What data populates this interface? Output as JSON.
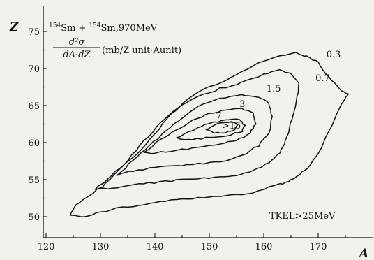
{
  "chart_data": {
    "type": "contour",
    "title": "",
    "reaction": {
      "mass1": "154",
      "el1": "Sm",
      "plus": "+",
      "mass2": "154",
      "el2": "Sm",
      "energy": ",970MeV"
    },
    "quantity": {
      "numerator": "d²σ",
      "denominator": "dA·dZ",
      "unit": "(mb/Z unit·Aunit)"
    },
    "cut_label": "TKEL>25MeV",
    "xlabel": "A",
    "ylabel": "Z",
    "xlim": [
      120,
      177
    ],
    "ylim": [
      48,
      76
    ],
    "xticks": [
      120,
      130,
      140,
      150,
      160,
      170
    ],
    "yticks": [
      50,
      55,
      60,
      65,
      70,
      75
    ],
    "grid": false,
    "contours": [
      {
        "level": "0.3",
        "label_pos": [
          171.5,
          71.5
        ],
        "points": [
          [
            124.5,
            50.2
          ],
          [
            125.5,
            51.6
          ],
          [
            128,
            52.8
          ],
          [
            131,
            54.5
          ],
          [
            134,
            56.8
          ],
          [
            137,
            58.6
          ],
          [
            140,
            61.2
          ],
          [
            143,
            63.8
          ],
          [
            146,
            65.9
          ],
          [
            150,
            67.6
          ],
          [
            154,
            68.7
          ],
          [
            158,
            70.4
          ],
          [
            162,
            71.6
          ],
          [
            166,
            72.1
          ],
          [
            168,
            71.6
          ],
          [
            170,
            70.8
          ],
          [
            172,
            68.7
          ],
          [
            174,
            67.2
          ],
          [
            175.5,
            66.6
          ],
          [
            174,
            64.6
          ],
          [
            172,
            61.6
          ],
          [
            170,
            58.6
          ],
          [
            168,
            56.6
          ],
          [
            166,
            55.4
          ],
          [
            164,
            54.6
          ],
          [
            162,
            54.2
          ],
          [
            158,
            53.2
          ],
          [
            154,
            52.9
          ],
          [
            150,
            52.6
          ],
          [
            146,
            52.4
          ],
          [
            142,
            52.1
          ],
          [
            138,
            51.6
          ],
          [
            134,
            51.3
          ],
          [
            130,
            50.6
          ],
          [
            127,
            50.0
          ],
          [
            124.5,
            50.2
          ]
        ]
      },
      {
        "level": "0.7",
        "label_pos": [
          169.5,
          68.3
        ],
        "points": [
          [
            129,
            53.7
          ],
          [
            132,
            55.5
          ],
          [
            135,
            57.6
          ],
          [
            138,
            60.2
          ],
          [
            141,
            62.6
          ],
          [
            144,
            64.6
          ],
          [
            148,
            66.2
          ],
          [
            152,
            67.3
          ],
          [
            156,
            68.1
          ],
          [
            160,
            69.2
          ],
          [
            163,
            69.8
          ],
          [
            165,
            69.3
          ],
          [
            166.5,
            68.1
          ],
          [
            166,
            65.6
          ],
          [
            165,
            62.6
          ],
          [
            164,
            60.1
          ],
          [
            163,
            58.6
          ],
          [
            161,
            57.3
          ],
          [
            158,
            56.2
          ],
          [
            155,
            55.6
          ],
          [
            152,
            55.3
          ],
          [
            148,
            55.2
          ],
          [
            144,
            54.9
          ],
          [
            140,
            54.6
          ],
          [
            136,
            54.3
          ],
          [
            132,
            53.8
          ],
          [
            129,
            53.7
          ]
        ]
      },
      {
        "level": "1.5",
        "label_pos": [
          160.5,
          66.9
        ],
        "points": [
          [
            133,
            55.6
          ],
          [
            136,
            57.6
          ],
          [
            139,
            59.6
          ],
          [
            142,
            61.6
          ],
          [
            145,
            63.4
          ],
          [
            148,
            64.9
          ],
          [
            152,
            65.9
          ],
          [
            156,
            66.4
          ],
          [
            159,
            66.2
          ],
          [
            161,
            65.3
          ],
          [
            161.5,
            63.6
          ],
          [
            161,
            61.4
          ],
          [
            159,
            59.6
          ],
          [
            156,
            58.2
          ],
          [
            152,
            57.4
          ],
          [
            148,
            57.1
          ],
          [
            144,
            56.9
          ],
          [
            140,
            56.6
          ],
          [
            136,
            56.2
          ],
          [
            133,
            55.6
          ]
        ]
      },
      {
        "level": "3",
        "label_pos": [
          155.5,
          64.8
        ],
        "points": [
          [
            138,
            58.6
          ],
          [
            141,
            60.4
          ],
          [
            144,
            61.8
          ],
          [
            147,
            63.0
          ],
          [
            150,
            63.9
          ],
          [
            153,
            64.4
          ],
          [
            156,
            64.6
          ],
          [
            158,
            64.0
          ],
          [
            158.5,
            62.6
          ],
          [
            157.5,
            61.2
          ],
          [
            155,
            60.3
          ],
          [
            152,
            59.8
          ],
          [
            148,
            59.3
          ],
          [
            144,
            59.0
          ],
          [
            140,
            58.6
          ],
          [
            138,
            58.6
          ]
        ]
      },
      {
        "level": "7",
        "label_pos": [
          151.2,
          63.2
        ],
        "points": [
          [
            144,
            60.6
          ],
          [
            147,
            61.7
          ],
          [
            150,
            62.6
          ],
          [
            153,
            63.1
          ],
          [
            155.5,
            63.1
          ],
          [
            156.5,
            62.4
          ],
          [
            156,
            61.5
          ],
          [
            153.5,
            61.0
          ],
          [
            150,
            60.7
          ],
          [
            147,
            60.4
          ],
          [
            144,
            60.6
          ]
        ]
      },
      {
        "level": ">15",
        "label_pos": [
          152.3,
          61.9
        ],
        "points": [
          [
            149.5,
            61.7
          ],
          [
            151.5,
            62.5
          ],
          [
            154,
            62.9
          ],
          [
            155.2,
            62.4
          ],
          [
            154.8,
            61.8
          ],
          [
            153,
            61.4
          ],
          [
            151,
            61.3
          ],
          [
            149.5,
            61.7
          ]
        ]
      }
    ]
  }
}
